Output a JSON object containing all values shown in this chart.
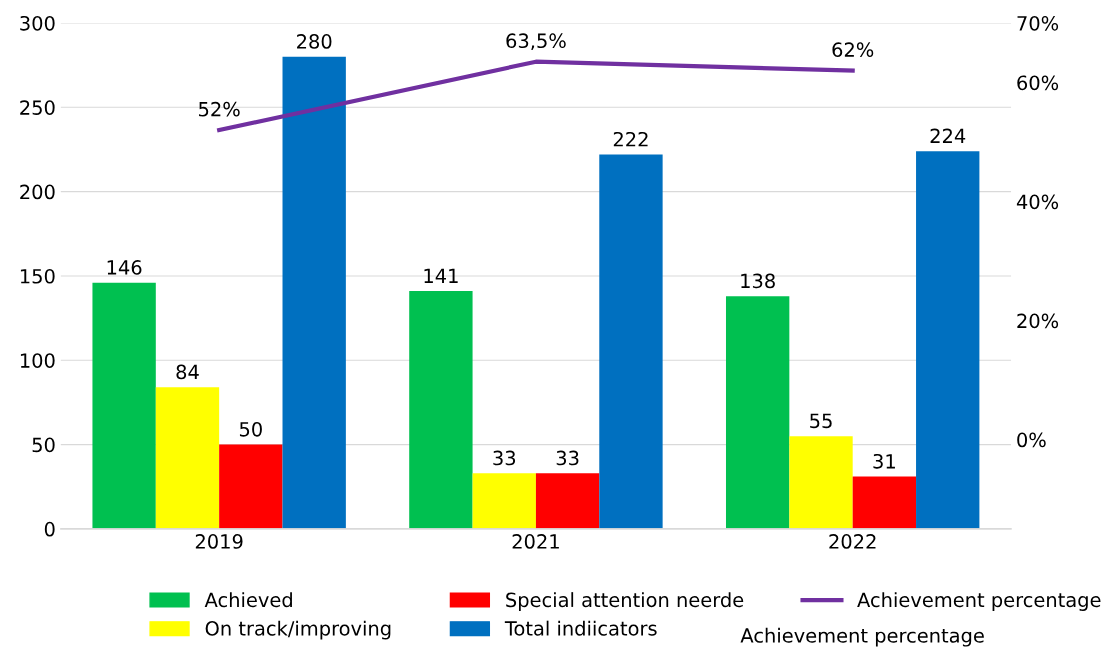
{
  "chart_data": {
    "type": "bar",
    "categories": [
      "2019",
      "2021",
      "2022"
    ],
    "series": [
      {
        "name": "Achieved",
        "color": "#00c050",
        "values": [
          146,
          141,
          138
        ]
      },
      {
        "name": "On track/improving",
        "color": "#ffff00",
        "values": [
          84,
          33,
          55
        ]
      },
      {
        "name": "Special attention neerde",
        "color": "#ff0000",
        "values": [
          50,
          33,
          31
        ]
      },
      {
        "name": "Total indiicators",
        "color": "#0070c0",
        "values": [
          280,
          222,
          224
        ]
      },
      {
        "name": "Achievement percentage",
        "type": "line",
        "axis": "y2",
        "color": "#7030a0",
        "values": [
          52,
          63.5,
          62
        ],
        "value_labels": [
          "52%",
          "63,5%",
          "62%"
        ]
      }
    ],
    "data_labels": true,
    "ylim": [
      0,
      300
    ],
    "yticks": [
      0,
      50,
      100,
      150,
      200,
      250,
      300
    ],
    "y2lim": [
      -15,
      70
    ],
    "y2ticks": [
      {
        "value": 0,
        "label": "0%"
      },
      {
        "value": 20,
        "label": "20%"
      },
      {
        "value": 40,
        "label": "40%"
      },
      {
        "value": 60,
        "label": "60%"
      },
      {
        "value": 70,
        "label": "70%"
      }
    ],
    "grid": "y",
    "legend": "bottom",
    "marker": "none",
    "line_style": "solid",
    "annotations": [
      "Achievement percentage"
    ]
  }
}
